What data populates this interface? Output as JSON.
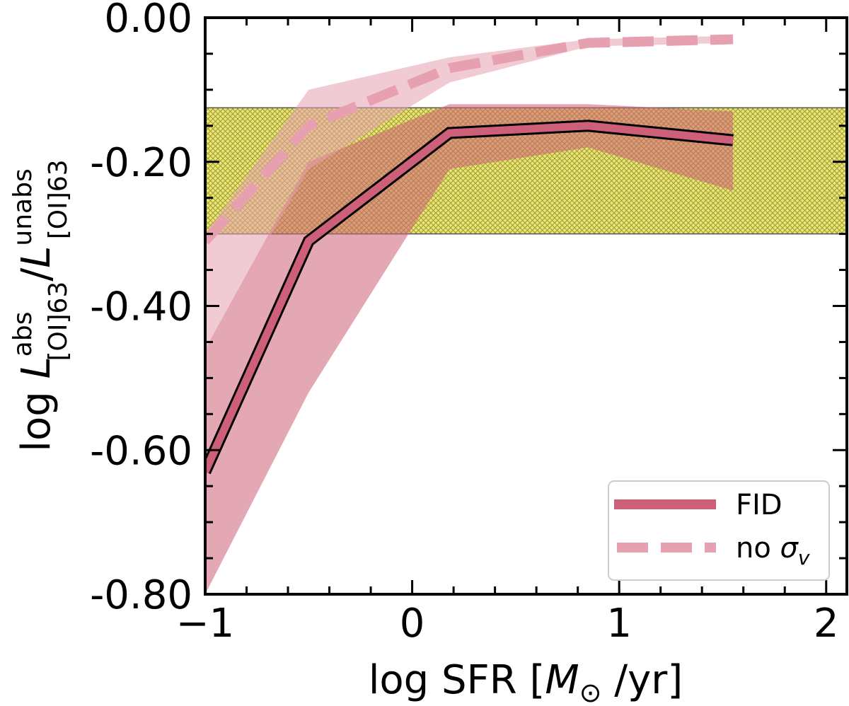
{
  "chart_data": {
    "type": "line",
    "title": "",
    "xlabel": "log SFR [M_sun/yr]",
    "ylabel": "log L_[OI]63^abs / L_[OI]63^unabs",
    "xlabel_parts": {
      "prefix": "log SFR [",
      "m": "M",
      "sun": "⊙",
      "suffix": " /yr]"
    },
    "ylabel_parts": {
      "prefix": "log ",
      "L": "L",
      "sub": "[OI]63",
      "sup_abs": "abs",
      "sup_unabs": "unabs"
    },
    "xlim": [
      -1,
      2.1
    ],
    "ylim": [
      -0.8,
      0.0
    ],
    "xticks": [
      -1,
      0,
      1,
      2
    ],
    "xtick_labels": [
      "−1",
      "0",
      "1",
      "2"
    ],
    "yticks": [
      -0.8,
      -0.6,
      -0.4,
      -0.2,
      0.0
    ],
    "ytick_labels": [
      "-0.80",
      "-0.60",
      "-0.40",
      "-0.20",
      "0.00"
    ],
    "grid": false,
    "legend_position": "bottom-right",
    "observed_band": {
      "y_range": [
        -0.3,
        -0.125
      ],
      "color": "#e8e86a",
      "hatch": "crosshatch"
    },
    "series": [
      {
        "name": "FID",
        "style": "solid",
        "color": "#cd6078",
        "x": [
          -1.0,
          -0.5,
          0.18,
          0.85,
          1.55
        ],
        "y": [
          -0.63,
          -0.31,
          -0.16,
          -0.15,
          -0.17
        ],
        "band_lower": [
          -0.8,
          -0.52,
          -0.21,
          -0.18,
          -0.24
        ],
        "band_upper": [
          -0.46,
          -0.2,
          -0.12,
          -0.12,
          -0.13
        ]
      },
      {
        "name": "no σv",
        "style": "dashed",
        "color": "#e6a0b0",
        "x": [
          -1.0,
          -0.5,
          0.18,
          0.85,
          1.55
        ],
        "y": [
          -0.31,
          -0.15,
          -0.07,
          -0.035,
          -0.03
        ],
        "band_lower": [
          -0.46,
          -0.21,
          -0.09,
          -0.04,
          -0.035
        ],
        "band_upper": [
          -0.3,
          -0.1,
          -0.055,
          -0.03,
          -0.025
        ]
      }
    ],
    "legend": [
      {
        "label": "FID",
        "style": "solid",
        "color": "#cd6078"
      },
      {
        "label_prefix": "no ",
        "label_symbol": "σ",
        "label_sub": "v",
        "style": "dashed",
        "color": "#e6a0b0"
      }
    ]
  }
}
